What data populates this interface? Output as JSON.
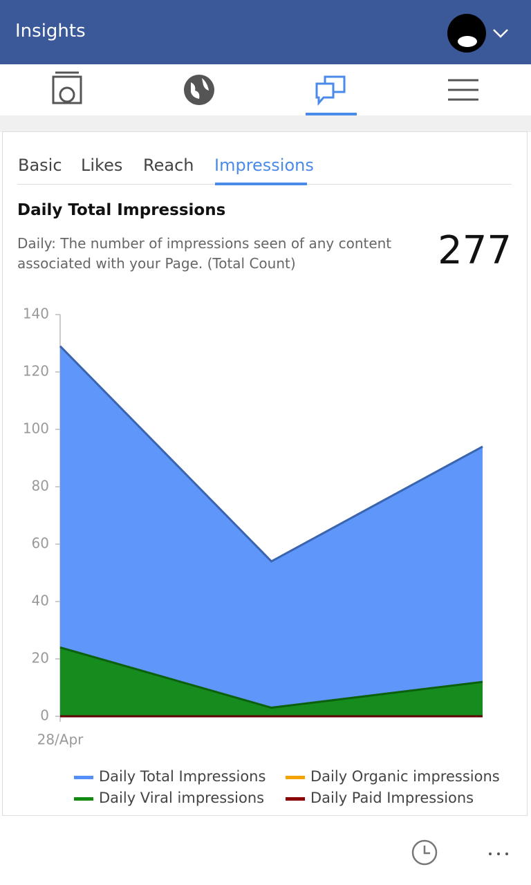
{
  "header": {
    "title": "Insights"
  },
  "tabs": [
    "Basic",
    "Likes",
    "Reach",
    "Impressions"
  ],
  "metric": {
    "title": "Daily Total Impressions",
    "description": "Daily: The number of impressions seen of any content associated with your Page. (Total Count)",
    "total": 277
  },
  "chart_data": {
    "type": "area",
    "categories": [
      "28/Apr",
      null,
      null
    ],
    "series": [
      {
        "name": "Daily Total Impressions",
        "color": "#5590fa",
        "values": [
          129,
          54,
          94
        ]
      },
      {
        "name": "Daily Viral impressions",
        "color": "#128a12",
        "values": [
          24,
          3,
          12
        ]
      },
      {
        "name": "Daily Organic impressions",
        "color": "#f5a300",
        "values": [
          0,
          0,
          0
        ]
      },
      {
        "name": "Daily Paid Impressions",
        "color": "#8b0000",
        "values": [
          0,
          0,
          0
        ]
      }
    ],
    "ylim": [
      0,
      140
    ],
    "yticks": [
      0,
      20,
      40,
      60,
      80,
      100,
      120,
      140
    ],
    "legend": "bottom"
  }
}
